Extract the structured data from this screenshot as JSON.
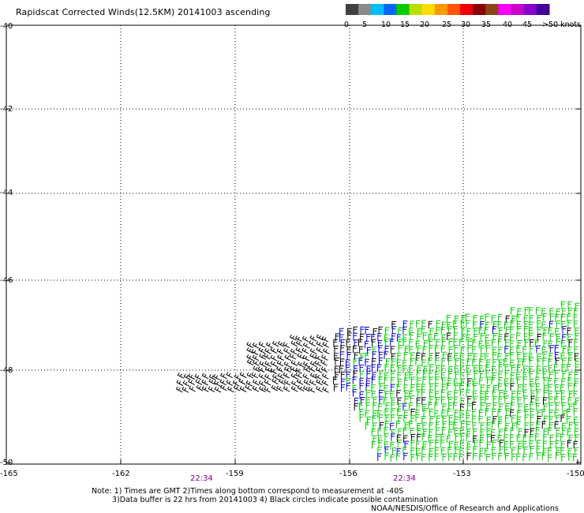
{
  "title": "Rapidscat Corrected Winds(12.5KM) 20141003 ascending",
  "colorbar": {
    "colors": [
      "#404040",
      "#8a8a8a",
      "#00bfff",
      "#0066ff",
      "#00cc00",
      "#b8e000",
      "#ffdd00",
      "#ff9900",
      "#ff5500",
      "#ee0000",
      "#8b0000",
      "#8b4513",
      "#ff00ff",
      "#cc00cc",
      "#8800cc",
      "#440099"
    ],
    "labels": [
      "0",
      "5",
      "10",
      "15",
      "20",
      "25",
      "30",
      "35",
      "40",
      "45",
      ">50 knots"
    ]
  },
  "axes": {
    "lat_labels": [
      "-40",
      "-42",
      "-44",
      "-46",
      "-48",
      "-50"
    ],
    "lon_labels": [
      "-165",
      "-162",
      "-159",
      "-156",
      "-153",
      "-150"
    ]
  },
  "times": [
    "22:34",
    "22:34"
  ],
  "time_color": "#800080",
  "notes": {
    "line1": "Note: 1) Times are GMT 2)Times along bottom correspond to measurement at -40S",
    "line2": "3)Data buffer is 22 hrs from 20141003 4) Black circles indicate possible contamination",
    "line3": "NOAA/NESDIS/Office of Research and Applications"
  },
  "wind_colors": {
    "low": "#000000",
    "mid": "#0000cc",
    "high": "#00cc00"
  }
}
